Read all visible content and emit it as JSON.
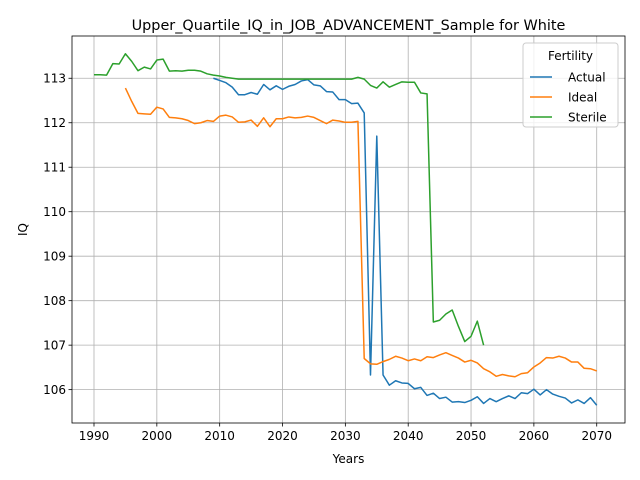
{
  "chart_data": {
    "type": "line",
    "title": "Upper_Quartile_IQ_in_JOB_ADVANCEMENT_Sample for White",
    "xlabel": "Years",
    "ylabel": "IQ",
    "xlim": [
      1986.5,
      2074.5
    ],
    "ylim": [
      105.25,
      113.95
    ],
    "x_ticks": [
      1990,
      2000,
      2010,
      2020,
      2030,
      2040,
      2050,
      2060,
      2070
    ],
    "y_ticks": [
      106,
      107,
      108,
      109,
      110,
      111,
      112,
      113
    ],
    "grid": true,
    "legend": {
      "title": "Fertility",
      "placement": "top-right"
    },
    "series": [
      {
        "name": "Actual",
        "color": "#1f77b4",
        "x": [
          2009,
          2010,
          2011,
          2012,
          2013,
          2014,
          2015,
          2016,
          2017,
          2018,
          2019,
          2020,
          2021,
          2022,
          2023,
          2024,
          2025,
          2026,
          2027,
          2028,
          2029,
          2030,
          2031,
          2032,
          2033,
          2034,
          2035,
          2036,
          2037,
          2038,
          2039,
          2040,
          2041,
          2042,
          2043,
          2044,
          2045,
          2046,
          2047,
          2048,
          2049,
          2050,
          2051,
          2052,
          2053,
          2054,
          2055,
          2056,
          2057,
          2058,
          2059,
          2060,
          2061,
          2062,
          2063,
          2064,
          2065,
          2066,
          2067,
          2068,
          2069,
          2070
        ],
        "values": [
          113.0,
          112.95,
          112.9,
          112.8,
          112.63,
          112.63,
          112.68,
          112.64,
          112.86,
          112.74,
          112.83,
          112.75,
          112.82,
          112.86,
          112.94,
          112.97,
          112.85,
          112.83,
          112.7,
          112.69,
          112.52,
          112.52,
          112.43,
          112.44,
          112.22,
          106.33,
          111.7,
          106.33,
          106.1,
          106.2,
          106.15,
          106.14,
          106.02,
          106.05,
          105.87,
          105.92,
          105.8,
          105.83,
          105.72,
          105.73,
          105.71,
          105.76,
          105.84,
          105.69,
          105.8,
          105.73,
          105.8,
          105.86,
          105.8,
          105.93,
          105.91,
          106.01,
          105.88,
          106.0,
          105.9,
          105.85,
          105.81,
          105.7,
          105.77,
          105.69,
          105.82,
          105.65
        ]
      },
      {
        "name": "Ideal",
        "color": "#ff7f0e",
        "x": [
          1995,
          1996,
          1997,
          1998,
          1999,
          2000,
          2001,
          2002,
          2003,
          2004,
          2005,
          2006,
          2007,
          2008,
          2009,
          2010,
          2011,
          2012,
          2013,
          2014,
          2015,
          2016,
          2017,
          2018,
          2019,
          2020,
          2021,
          2022,
          2023,
          2024,
          2025,
          2026,
          2027,
          2028,
          2029,
          2030,
          2031,
          2032,
          2033,
          2034,
          2035,
          2036,
          2037,
          2038,
          2039,
          2040,
          2041,
          2042,
          2043,
          2044,
          2045,
          2046,
          2047,
          2048,
          2049,
          2050,
          2051,
          2052,
          2053,
          2054,
          2055,
          2056,
          2057,
          2058,
          2059,
          2060,
          2061,
          2062,
          2063,
          2064,
          2065,
          2066,
          2067,
          2068,
          2069,
          2070
        ],
        "values": [
          112.78,
          112.48,
          112.21,
          112.2,
          112.19,
          112.35,
          112.31,
          112.12,
          112.11,
          112.09,
          112.05,
          111.98,
          112.0,
          112.05,
          112.03,
          112.15,
          112.17,
          112.13,
          112.01,
          112.02,
          112.06,
          111.92,
          112.11,
          111.91,
          112.09,
          112.09,
          112.13,
          112.11,
          112.12,
          112.15,
          112.12,
          112.05,
          111.98,
          112.06,
          112.04,
          112.01,
          112.01,
          112.03,
          106.7,
          106.58,
          106.57,
          106.63,
          106.68,
          106.75,
          106.71,
          106.65,
          106.69,
          106.65,
          106.74,
          106.72,
          106.78,
          106.83,
          106.77,
          106.71,
          106.62,
          106.66,
          106.6,
          106.47,
          106.4,
          106.3,
          106.34,
          106.31,
          106.29,
          106.36,
          106.38,
          106.51,
          106.6,
          106.72,
          106.71,
          106.75,
          106.71,
          106.62,
          106.62,
          106.48,
          106.47,
          106.42
        ]
      },
      {
        "name": "Sterile",
        "color": "#2ca02c",
        "x": [
          1990,
          1991,
          1992,
          1993,
          1994,
          1995,
          1996,
          1997,
          1998,
          1999,
          2000,
          2001,
          2002,
          2003,
          2004,
          2005,
          2006,
          2007,
          2008,
          2009,
          2010,
          2011,
          2012,
          2013,
          2014,
          2015,
          2016,
          2017,
          2018,
          2019,
          2020,
          2021,
          2022,
          2023,
          2024,
          2025,
          2026,
          2027,
          2028,
          2029,
          2030,
          2031,
          2032,
          2033,
          2034,
          2035,
          2036,
          2037,
          2038,
          2039,
          2040,
          2041,
          2042,
          2043,
          2044,
          2045,
          2046,
          2047,
          2048,
          2049,
          2050,
          2051,
          2052
        ],
        "values": [
          113.08,
          113.08,
          113.07,
          113.33,
          113.32,
          113.55,
          113.38,
          113.17,
          113.25,
          113.21,
          113.41,
          113.43,
          113.16,
          113.17,
          113.16,
          113.18,
          113.18,
          113.16,
          113.1,
          113.07,
          113.05,
          113.02,
          113.0,
          112.98,
          112.98,
          112.98,
          112.98,
          112.98,
          112.98,
          112.98,
          112.98,
          112.98,
          112.98,
          112.98,
          112.98,
          112.98,
          112.98,
          112.98,
          112.98,
          112.98,
          112.98,
          112.98,
          113.02,
          112.98,
          112.84,
          112.78,
          112.92,
          112.8,
          112.86,
          112.92,
          112.91,
          112.91,
          112.67,
          112.65,
          107.52,
          107.56,
          107.7,
          107.79,
          107.42,
          107.08,
          107.2,
          107.54,
          107.0
        ]
      }
    ]
  }
}
